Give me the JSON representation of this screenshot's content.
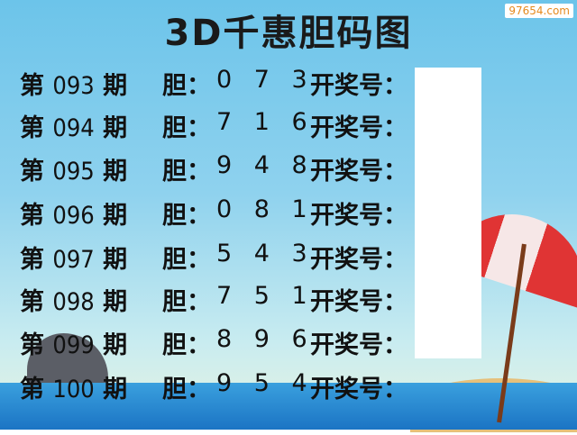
{
  "title": "3D千惠胆码图",
  "watermark": "97654.com",
  "labels": {
    "issue_prefix": "第",
    "issue_suffix": "期",
    "dan": "胆：",
    "kai": "开奖号："
  },
  "rows": [
    {
      "issue": "093",
      "digits": "0 7 3"
    },
    {
      "issue": "094",
      "digits": "7 1 6"
    },
    {
      "issue": "095",
      "digits": "9 4 8"
    },
    {
      "issue": "096",
      "digits": "0 8 1"
    },
    {
      "issue": "097",
      "digits": "5 4 3"
    },
    {
      "issue": "098",
      "digits": "7 5 1"
    },
    {
      "issue": "099",
      "digits": "8 9 6"
    },
    {
      "issue": "100",
      "digits": "9 5 4"
    }
  ]
}
